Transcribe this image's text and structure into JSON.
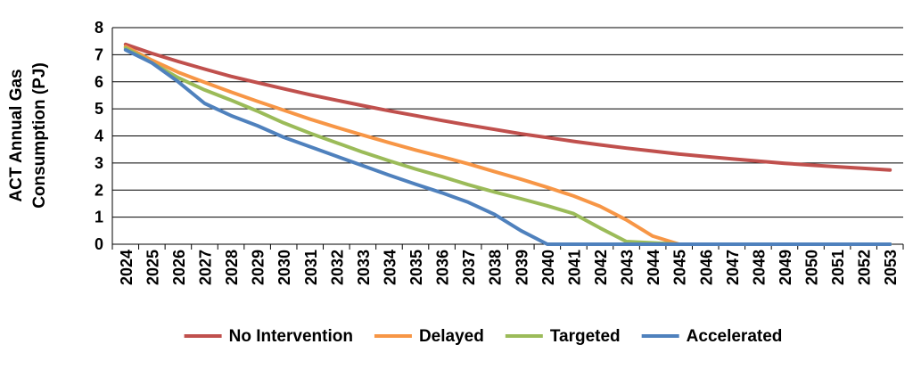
{
  "chart_data": {
    "type": "line",
    "title": "",
    "xlabel": "",
    "ylabel": "ACT Annual Gas Consumption (PJ)",
    "ylabel_lines": [
      "ACT Annual Gas",
      "Consumption (PJ)"
    ],
    "ylim": [
      0,
      8
    ],
    "yticks": [
      "0",
      "1",
      "2",
      "3",
      "4",
      "5",
      "6",
      "7",
      "8"
    ],
    "grid": true,
    "legend_position": "bottom",
    "x": [
      "2024",
      "2025",
      "2026",
      "2027",
      "2028",
      "2029",
      "2030",
      "2031",
      "2032",
      "2033",
      "2034",
      "2035",
      "2036",
      "2037",
      "2038",
      "2039",
      "2040",
      "2041",
      "2042",
      "2043",
      "2044",
      "2045",
      "2046",
      "2047",
      "2048",
      "2049",
      "2050",
      "2051",
      "2052",
      "2053"
    ],
    "series": [
      {
        "name": "No Intervention",
        "color": "#c0504d",
        "values": [
          7.38,
          7.05,
          6.75,
          6.47,
          6.2,
          5.97,
          5.74,
          5.52,
          5.32,
          5.12,
          4.93,
          4.75,
          4.57,
          4.4,
          4.24,
          4.08,
          3.94,
          3.8,
          3.67,
          3.55,
          3.44,
          3.33,
          3.24,
          3.15,
          3.07,
          2.99,
          2.92,
          2.86,
          2.8,
          2.74
        ]
      },
      {
        "name": "Delayed",
        "color": "#f79646",
        "values": [
          7.3,
          6.8,
          6.35,
          5.98,
          5.62,
          5.28,
          4.95,
          4.62,
          4.32,
          4.03,
          3.75,
          3.48,
          3.23,
          2.97,
          2.68,
          2.4,
          2.1,
          1.78,
          1.4,
          0.9,
          0.3,
          0.0,
          0.0,
          0.0,
          0.0,
          0.0,
          0.0,
          0.0,
          0.0,
          0.0
        ]
      },
      {
        "name": "Targeted",
        "color": "#9bbb59",
        "values": [
          7.25,
          6.7,
          6.15,
          5.7,
          5.32,
          4.92,
          4.48,
          4.1,
          3.75,
          3.4,
          3.08,
          2.78,
          2.5,
          2.2,
          1.93,
          1.68,
          1.42,
          1.13,
          0.6,
          0.1,
          0.05,
          0.0,
          0.0,
          0.0,
          0.0,
          0.0,
          0.0,
          0.0,
          0.0,
          0.0
        ]
      },
      {
        "name": "Accelerated",
        "color": "#4f81bd",
        "values": [
          7.18,
          6.7,
          6.0,
          5.2,
          4.75,
          4.38,
          3.95,
          3.6,
          3.25,
          2.9,
          2.55,
          2.22,
          1.9,
          1.55,
          1.1,
          0.5,
          0.0,
          0.0,
          0.0,
          0.0,
          0.0,
          0.0,
          0.0,
          0.0,
          0.0,
          0.0,
          0.0,
          0.0,
          0.0,
          0.0
        ]
      }
    ]
  }
}
